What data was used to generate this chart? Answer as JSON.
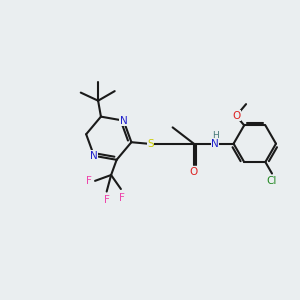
{
  "background_color": "#eaeef0",
  "bond_color": "#1a1a1a",
  "atom_colors": {
    "N": "#2020cc",
    "S": "#cccc00",
    "O": "#dd2222",
    "F": "#ee44aa",
    "Cl": "#228822",
    "H": "#447777",
    "C": "#1a1a1a"
  },
  "figsize": [
    3.0,
    3.0
  ],
  "dpi": 100
}
